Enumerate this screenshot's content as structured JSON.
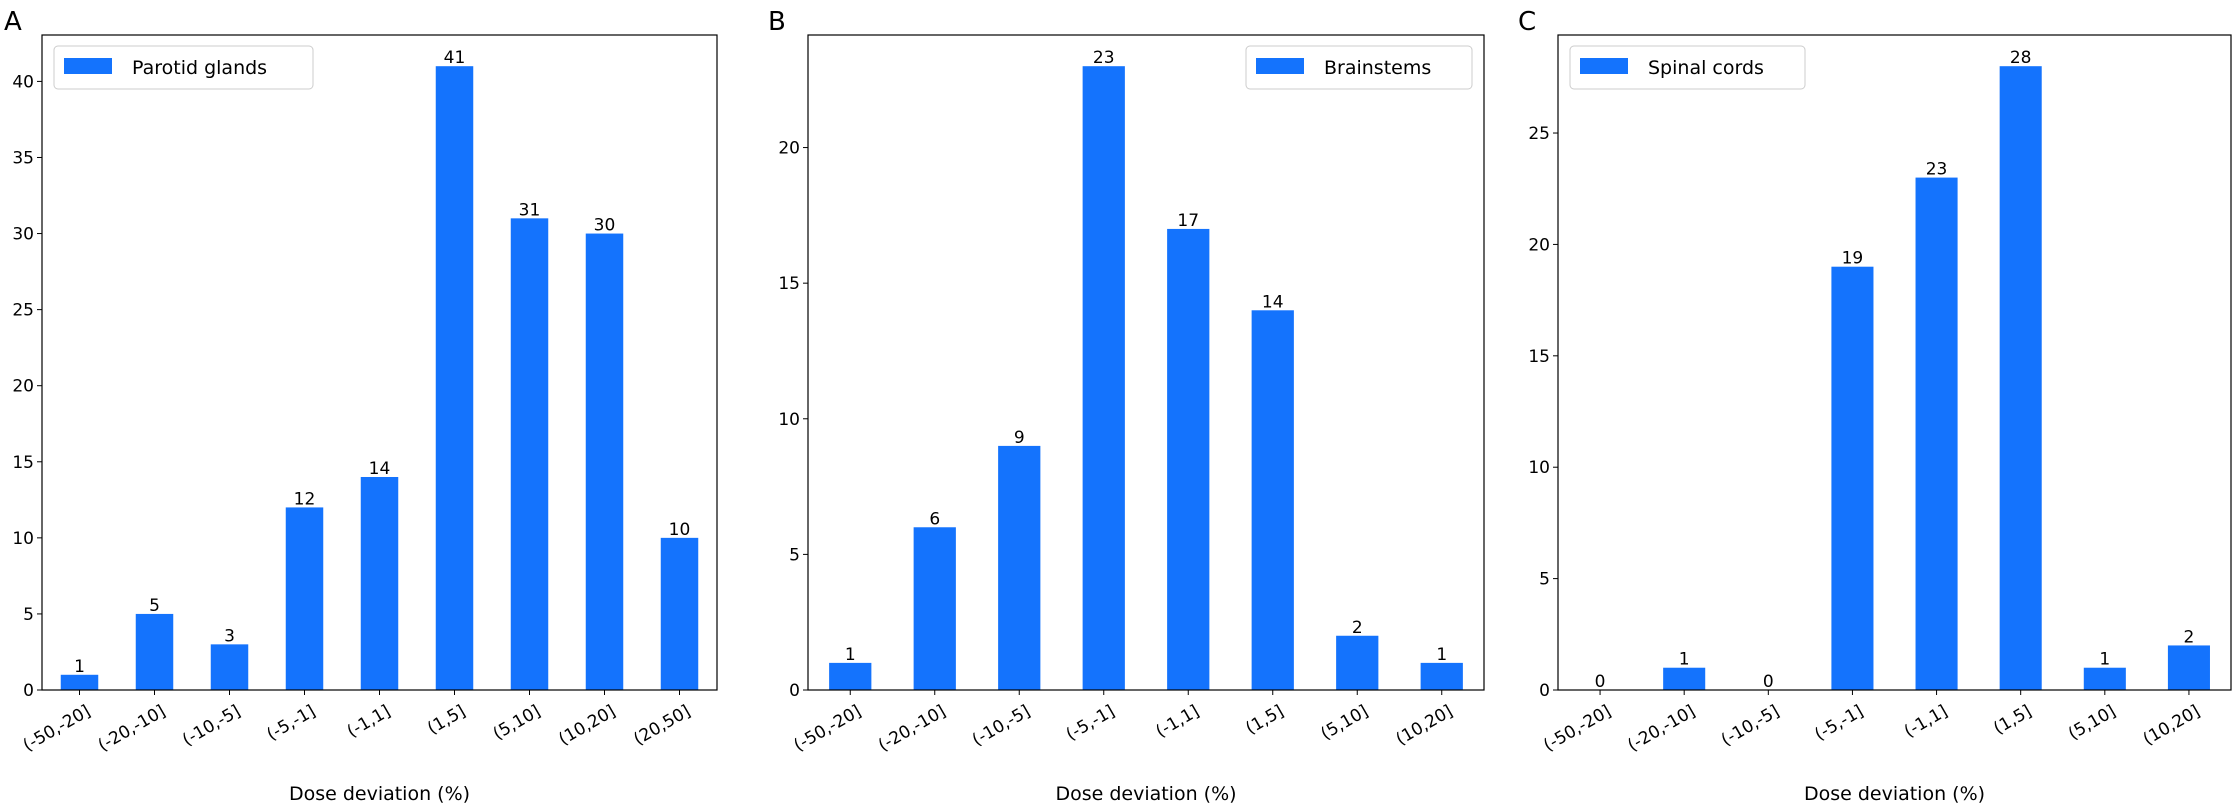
{
  "colors": {
    "bar": "#1473fd",
    "axis": "#000000",
    "legend_border": "#cccccc"
  },
  "chart_data": [
    {
      "type": "bar",
      "panel_label": "A",
      "categories": [
        "(-50,-20]",
        "(-20,-10]",
        "(-10,-5]",
        "(-5,-1]",
        "(-1,1]",
        "(1,5]",
        "(5,10]",
        "(10,20]",
        "(20,50]"
      ],
      "series": [
        {
          "name": "Parotid glands",
          "values": [
            1,
            5,
            3,
            12,
            14,
            41,
            31,
            30,
            10
          ]
        }
      ],
      "data_labels": [
        "1",
        "5",
        "3",
        "12",
        "14",
        "41",
        "31",
        "30",
        "10"
      ],
      "xlabel": "Dose deviation (%)",
      "ylabel": "",
      "ylim": [
        0,
        43.05
      ],
      "yticks": [
        0,
        5,
        10,
        15,
        20,
        25,
        30,
        35,
        40
      ],
      "legend": "top-left",
      "grid": false
    },
    {
      "type": "bar",
      "panel_label": "B",
      "categories": [
        "(-50,-20]",
        "(-20,-10]",
        "(-10,-5]",
        "(-5,-1]",
        "(-1,1]",
        "(1,5]",
        "(5,10]",
        "(10,20]"
      ],
      "series": [
        {
          "name": "Brainstems",
          "values": [
            1,
            6,
            9,
            23,
            17,
            14,
            2,
            1
          ]
        }
      ],
      "data_labels": [
        "1",
        "6",
        "9",
        "23",
        "17",
        "14",
        "2",
        "1"
      ],
      "xlabel": "Dose deviation (%)",
      "ylabel": "",
      "ylim": [
        0,
        24.15
      ],
      "yticks": [
        0,
        5,
        10,
        15,
        20
      ],
      "legend": "top-right",
      "grid": false
    },
    {
      "type": "bar",
      "panel_label": "C",
      "categories": [
        "(-50,-20]",
        "(-20,-10]",
        "(-10,-5]",
        "(-5,-1]",
        "(-1,1]",
        "(1,5]",
        "(5,10]",
        "(10,20]"
      ],
      "series": [
        {
          "name": "Spinal cords",
          "values": [
            0,
            1,
            0,
            19,
            23,
            28,
            1,
            2
          ]
        }
      ],
      "data_labels": [
        "0",
        "1",
        "0",
        "19",
        "23",
        "28",
        "1",
        "2"
      ],
      "xlabel": "Dose deviation (%)",
      "ylabel": "",
      "ylim": [
        0,
        29.4
      ],
      "yticks": [
        0,
        5,
        10,
        15,
        20,
        25
      ],
      "legend": "top-left",
      "grid": false
    }
  ]
}
